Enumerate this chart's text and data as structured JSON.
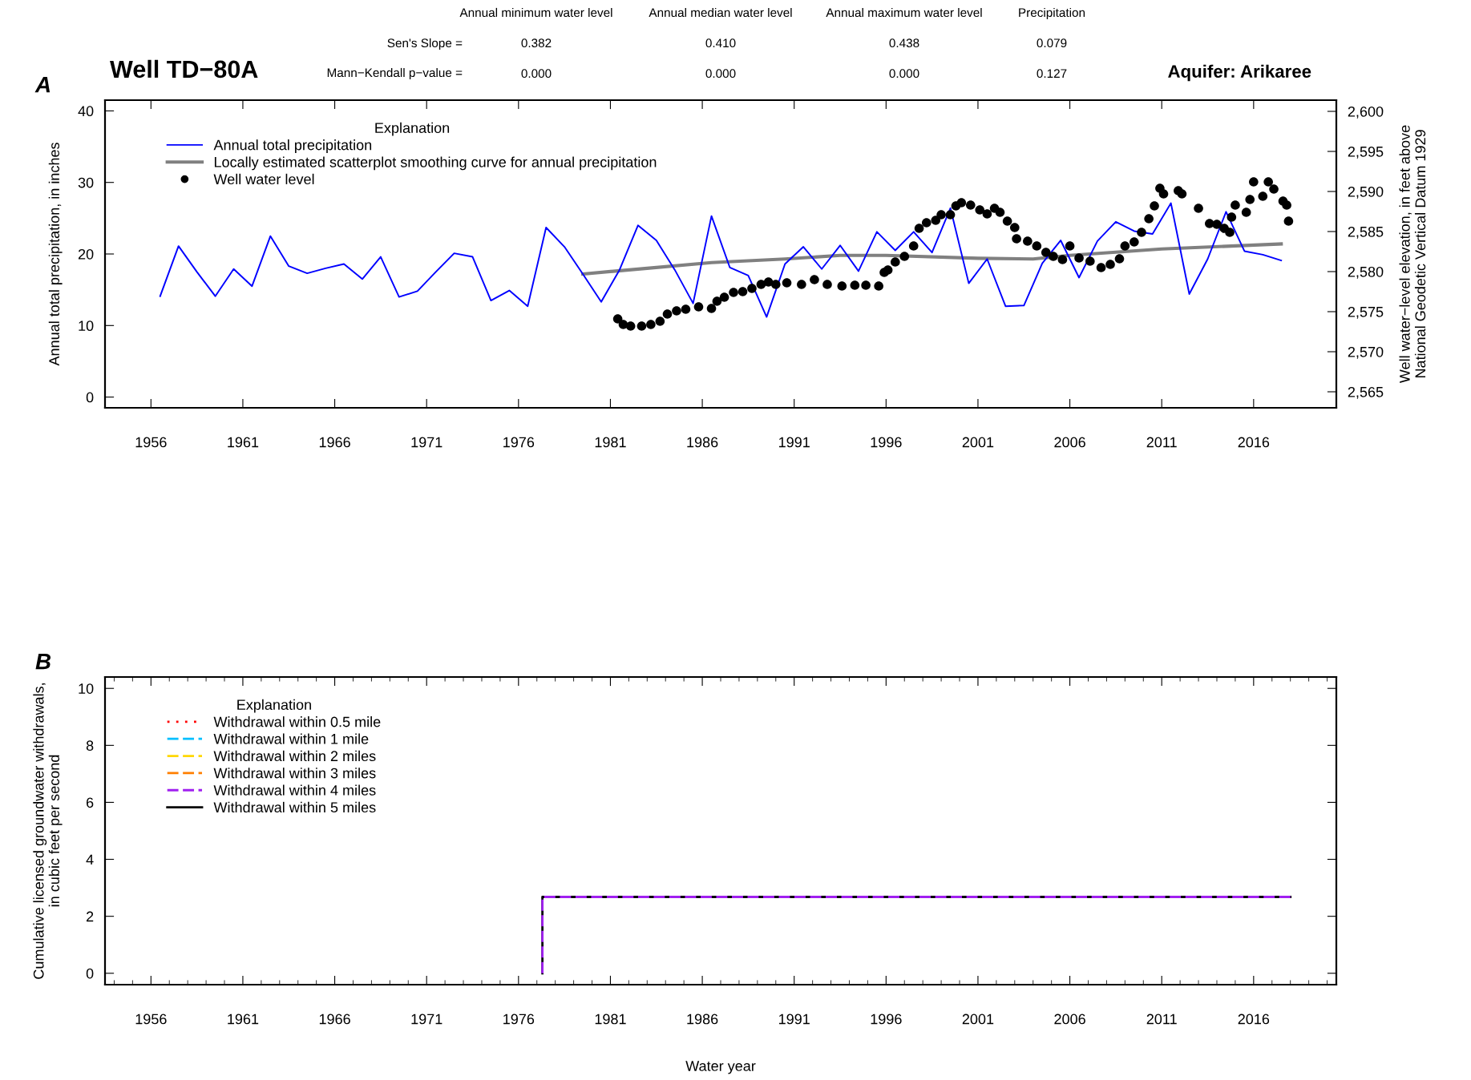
{
  "chart_data": [
    {
      "type": "line",
      "title": "Well TD−80A",
      "subtitle": "Aquifer: Arikaree",
      "annotations": [
        "A",
        "Annual minimum water level",
        "Annual median water level",
        "Annual maximum water level",
        "Precipitation",
        "Sen's Slope =",
        "0.382",
        "0.410",
        "0.438",
        "0.079",
        "Mann−Kendall p−value =",
        "0.000",
        "0.000",
        "0.000",
        "0.127"
      ],
      "ylabel": "Annual total precipitation, in inches",
      "y2label": "Well water−level elevation, in feet above\nNational Geodetic Vertical Datum 1929",
      "xlim": [
        1953.5,
        2020.5
      ],
      "xticks": [
        1956,
        1961,
        1966,
        1971,
        1976,
        1981,
        1986,
        1991,
        1996,
        2001,
        2006,
        2011,
        2016
      ],
      "ylim": [
        -1.5,
        41.5
      ],
      "yticks": [
        0,
        10,
        20,
        30,
        40
      ],
      "y2lim": [
        2563.0,
        2601.4
      ],
      "y2ticks": [
        {
          "value": 2565,
          "label": "2,565"
        },
        {
          "value": 2570,
          "label": "2,570"
        },
        {
          "value": 2575,
          "label": "2,575"
        },
        {
          "value": 2580,
          "label": "2,580"
        },
        {
          "value": 2585,
          "label": "2,585"
        },
        {
          "value": 2590,
          "label": "2,590"
        },
        {
          "value": 2595,
          "label": "2,595"
        },
        {
          "value": 2600,
          "label": "2,600"
        }
      ],
      "legend": "top left",
      "legend_title": "Explanation",
      "series": [
        {
          "name": "Annual total precipitation",
          "type": "line",
          "color": "#0000ff",
          "x": [
            1956.5,
            1957.5,
            1958.5,
            1959.5,
            1960.5,
            1961.5,
            1962.5,
            1963.5,
            1964.5,
            1965.5,
            1966.5,
            1967.5,
            1968.5,
            1969.5,
            1970.5,
            1971.5,
            1972.5,
            1973.5,
            1974.5,
            1975.5,
            1976.5,
            1977.5,
            1978.5,
            1979.5,
            1980.5,
            1981.5,
            1982.5,
            1983.5,
            1984.5,
            1985.5,
            1986.5,
            1987.5,
            1988.5,
            1989.5,
            1990.5,
            1991.5,
            1992.5,
            1993.5,
            1994.5,
            1995.5,
            1996.5,
            1997.5,
            1998.5,
            1999.5,
            2000.5,
            2001.5,
            2002.5,
            2003.5,
            2004.5,
            2005.5,
            2006.5,
            2007.5,
            2008.5,
            2009.5,
            2010.5,
            2011.5,
            2012.5,
            2013.5,
            2014.5,
            2015.5,
            2016.5,
            2017.5
          ],
          "values": [
            14.1,
            21.1,
            17.5,
            14.1,
            17.9,
            15.5,
            22.5,
            18.3,
            17.3,
            18.0,
            18.6,
            16.5,
            19.6,
            14.0,
            14.8,
            17.5,
            20.1,
            19.6,
            13.5,
            14.9,
            12.7,
            23.7,
            21.0,
            17.2,
            13.3,
            17.8,
            24.0,
            21.9,
            17.8,
            13.1,
            25.3,
            18.1,
            17.0,
            11.2,
            18.6,
            21.0,
            17.9,
            21.2,
            17.6,
            23.1,
            20.5,
            23.1,
            20.2,
            26.4,
            15.9,
            19.3,
            12.7,
            12.8,
            18.7,
            21.9,
            16.7,
            21.8,
            24.5,
            23.2,
            22.8,
            27.1,
            14.4,
            19.3,
            25.9,
            20.4,
            19.9,
            19.1
          ]
        },
        {
          "name": "Locally estimated scatterplot smoothing curve for annual precipitation",
          "type": "line",
          "color": "#808080",
          "x": [
            1979.5,
            1983,
            1986.5,
            1990.5,
            1993.5,
            1996,
            2001,
            2004,
            2006,
            2011,
            2017.5
          ],
          "values": [
            17.2,
            18.0,
            18.8,
            19.3,
            19.8,
            19.8,
            19.4,
            19.3,
            19.8,
            20.7,
            21.4
          ]
        },
        {
          "name": "Well water level",
          "type": "scatter",
          "axis": "y2",
          "color": "#000000",
          "marker": "circle",
          "x": [
            1981.4,
            1981.7,
            1982.1,
            1982.7,
            1983.2,
            1983.7,
            1984.1,
            1984.6,
            1985.1,
            1985.8,
            1986.5,
            1986.8,
            1987.2,
            1987.7,
            1988.2,
            1988.7,
            1989.2,
            1989.6,
            1990.0,
            1990.6,
            1991.4,
            1992.1,
            1992.8,
            1993.6,
            1994.3,
            1994.9,
            1995.6,
            1995.9,
            1996.1,
            1996.5,
            1997.0,
            1997.5,
            1997.8,
            1998.2,
            1998.7,
            1999.0,
            1999.5,
            1999.8,
            2000.1,
            2000.6,
            2001.1,
            2001.5,
            2001.9,
            2002.2,
            2002.6,
            2003.0,
            2003.1,
            2003.7,
            2004.2,
            2004.7,
            2005.1,
            2005.6,
            2006.0,
            2006.5,
            2007.1,
            2007.7,
            2008.2,
            2008.7,
            2009.0,
            2009.5,
            2009.9,
            2010.3,
            2010.6,
            2010.9,
            2011.1,
            2011.9,
            2012.1,
            2013.0,
            2013.6,
            2014.0,
            2014.4,
            2014.7,
            2014.8,
            2015.0,
            2015.6,
            2015.8,
            2016.0,
            2016.5,
            2016.8,
            2017.1,
            2017.6,
            2017.8,
            2017.9
          ],
          "values": [
            2574.1,
            2573.4,
            2573.2,
            2573.2,
            2573.4,
            2573.8,
            2574.7,
            2575.1,
            2575.3,
            2575.6,
            2575.4,
            2576.3,
            2576.8,
            2577.4,
            2577.5,
            2577.9,
            2578.4,
            2578.7,
            2578.4,
            2578.6,
            2578.4,
            2579.0,
            2578.4,
            2578.2,
            2578.3,
            2578.3,
            2578.2,
            2579.9,
            2580.2,
            2581.2,
            2581.9,
            2583.2,
            2585.4,
            2586.1,
            2586.4,
            2587.1,
            2587.1,
            2588.2,
            2588.6,
            2588.3,
            2587.7,
            2587.2,
            2587.9,
            2587.4,
            2586.3,
            2585.5,
            2584.1,
            2583.8,
            2583.2,
            2582.4,
            2581.9,
            2581.5,
            2583.2,
            2581.7,
            2581.3,
            2580.5,
            2580.9,
            2581.6,
            2583.2,
            2583.7,
            2584.9,
            2586.6,
            2588.2,
            2590.4,
            2589.7,
            2590.1,
            2589.7,
            2587.9,
            2586.0,
            2585.9,
            2585.4,
            2584.9,
            2586.8,
            2588.3,
            2587.4,
            2589.0,
            2591.2,
            2589.4,
            2591.2,
            2590.3,
            2588.8,
            2588.3,
            2586.3
          ]
        }
      ]
    },
    {
      "type": "line",
      "annotations": [
        "B"
      ],
      "xlabel": "Water year",
      "ylabel": "Cumulative licensed groundwater withdrawals,\nin cubic feet per second",
      "xlim": [
        1953.5,
        2020.5
      ],
      "xticks": [
        1956,
        1961,
        1966,
        1971,
        1976,
        1981,
        1986,
        1991,
        1996,
        2001,
        2006,
        2011,
        2016
      ],
      "ylim": [
        -0.4,
        10.4
      ],
      "yticks": [
        0,
        2,
        4,
        6,
        8,
        10
      ],
      "legend": "top left",
      "legend_title": "Explanation",
      "series": [
        {
          "name": "Withdrawal within 0.5 mile",
          "color": "#ff0000",
          "line_style": "dotted"
        },
        {
          "name": "Withdrawal within 1 mile",
          "color": "#00bfff",
          "line_style": "dashed"
        },
        {
          "name": "Withdrawal within 2 miles",
          "color": "#ffd700",
          "line_style": "dashed"
        },
        {
          "name": "Withdrawal within 3 miles",
          "color": "#ff7f00",
          "line_style": "dashed"
        },
        {
          "name": "Withdrawal within 4 miles",
          "color": "#a020f0",
          "line_style": "dashed",
          "x": [
            1977.3,
            1977.3,
            2018.0
          ],
          "values": [
            0,
            2.68,
            2.68
          ]
        },
        {
          "name": "Withdrawal within 5 miles",
          "color": "#000000",
          "line_style": "solid",
          "x": [
            1977.3,
            1977.3,
            2018.0
          ],
          "values": [
            0,
            2.68,
            2.68
          ]
        }
      ]
    }
  ]
}
